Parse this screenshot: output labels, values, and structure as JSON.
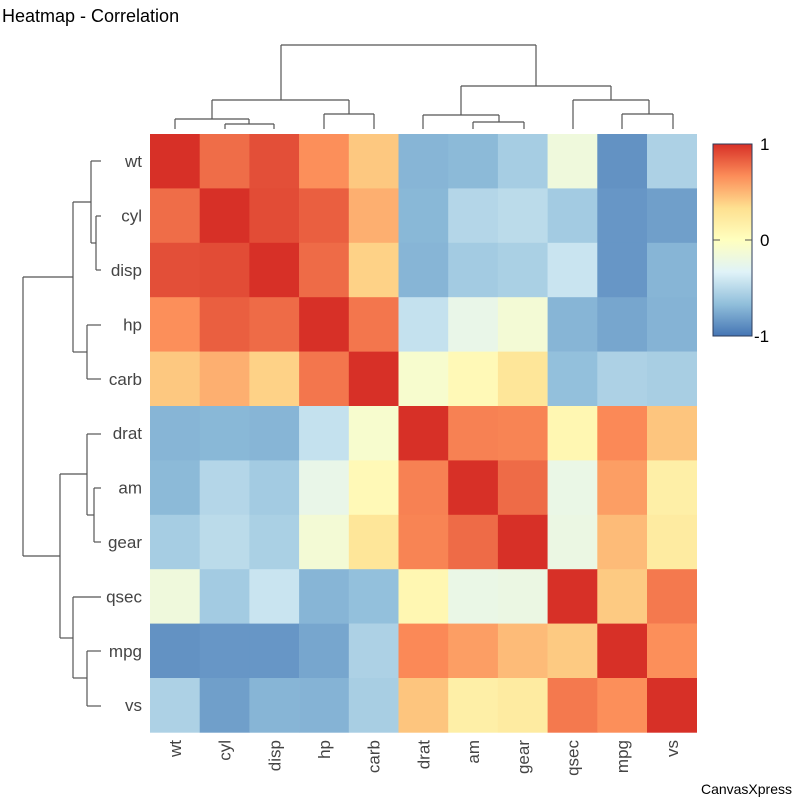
{
  "title": "Heatmap - Correlation",
  "credit": "CanvasXpress",
  "chart_data": {
    "type": "heatmap",
    "title": "Heatmap - Correlation",
    "variables": [
      "wt",
      "cyl",
      "disp",
      "hp",
      "carb",
      "drat",
      "am",
      "gear",
      "qsec",
      "mpg",
      "vs"
    ],
    "rows": [
      "wt",
      "cyl",
      "disp",
      "hp",
      "carb",
      "drat",
      "am",
      "gear",
      "qsec",
      "mpg",
      "vs"
    ],
    "columns": [
      "wt",
      "cyl",
      "disp",
      "hp",
      "carb",
      "drat",
      "am",
      "gear",
      "qsec",
      "mpg",
      "vs"
    ],
    "values": [
      [
        1.0,
        0.78,
        0.89,
        0.66,
        0.43,
        -0.71,
        -0.69,
        -0.58,
        -0.17,
        -0.87,
        -0.55
      ],
      [
        0.78,
        1.0,
        0.9,
        0.83,
        0.53,
        -0.7,
        -0.52,
        -0.49,
        -0.59,
        -0.85,
        -0.81
      ],
      [
        0.89,
        0.9,
        1.0,
        0.79,
        0.39,
        -0.71,
        -0.59,
        -0.56,
        -0.43,
        -0.85,
        -0.71
      ],
      [
        0.66,
        0.83,
        0.79,
        1.0,
        0.75,
        -0.45,
        -0.24,
        -0.13,
        -0.71,
        -0.78,
        -0.72
      ],
      [
        0.43,
        0.53,
        0.39,
        0.75,
        1.0,
        -0.09,
        0.06,
        0.27,
        -0.66,
        -0.55,
        -0.57
      ],
      [
        -0.71,
        -0.7,
        -0.71,
        -0.45,
        -0.09,
        1.0,
        0.71,
        0.7,
        0.09,
        0.68,
        0.44
      ],
      [
        -0.69,
        -0.52,
        -0.59,
        -0.24,
        0.06,
        0.71,
        1.0,
        0.79,
        -0.23,
        0.6,
        0.17
      ],
      [
        -0.58,
        -0.49,
        -0.56,
        -0.13,
        0.27,
        0.7,
        0.79,
        1.0,
        -0.21,
        0.48,
        0.21
      ],
      [
        -0.17,
        -0.59,
        -0.43,
        -0.71,
        -0.66,
        0.09,
        -0.23,
        -0.21,
        1.0,
        0.42,
        0.74
      ],
      [
        -0.87,
        -0.85,
        -0.85,
        -0.78,
        -0.55,
        0.68,
        0.6,
        0.48,
        0.42,
        1.0,
        0.66
      ],
      [
        -0.55,
        -0.81,
        -0.71,
        -0.72,
        -0.57,
        0.44,
        0.17,
        0.21,
        0.74,
        0.66,
        1.0
      ]
    ],
    "color_range": [
      -1,
      1
    ],
    "color_scale": [
      "#4575B4",
      "#91BFDB",
      "#E0F3F8",
      "#FFFFBF",
      "#FEE090",
      "#FC8D59",
      "#D73027"
    ],
    "legend": {
      "position": "top-right",
      "ticks": [
        "1",
        "0",
        "-1"
      ]
    },
    "dendrograms": [
      "top",
      "left"
    ]
  }
}
